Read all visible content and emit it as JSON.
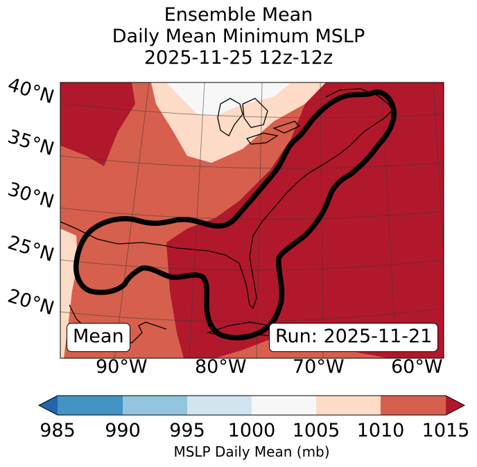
{
  "title": {
    "line1": "Ensemble Mean",
    "line2": "Daily Mean Minimum MSLP",
    "line3": "2025-11-25 12z-12z"
  },
  "map": {
    "latitude_labels": [
      "40°N",
      "35°N",
      "30°N",
      "25°N",
      "20°N"
    ],
    "longitude_labels": [
      "90°W",
      "80°W",
      "70°W",
      "60°W"
    ],
    "annotation_left": "Mean",
    "annotation_right": "Run: 2025-11-21",
    "region_fill_mb": {
      "great_lakes_north": "1000-1005",
      "inland_band": "1005-1010",
      "western_and_central": "1010-1015",
      "atlantic_and_east_coast": "1015+"
    },
    "outline": "black contour around Gulf of Mexico, Florida and US east coast"
  },
  "colorbar": {
    "label": "MSLP Daily Mean (mb)",
    "ticks": [
      "985",
      "990",
      "995",
      "1000",
      "1005",
      "1010",
      "1015"
    ],
    "colors": {
      "under": "#2166ac",
      "b985_990": "#4393c3",
      "b990_995": "#92c5de",
      "b995_1000": "#d1e5f0",
      "b1000_1005": "#f7f7f7",
      "b1005_1010": "#fddbc7",
      "b1010_1015": "#d6604d",
      "over": "#b2182b"
    }
  }
}
